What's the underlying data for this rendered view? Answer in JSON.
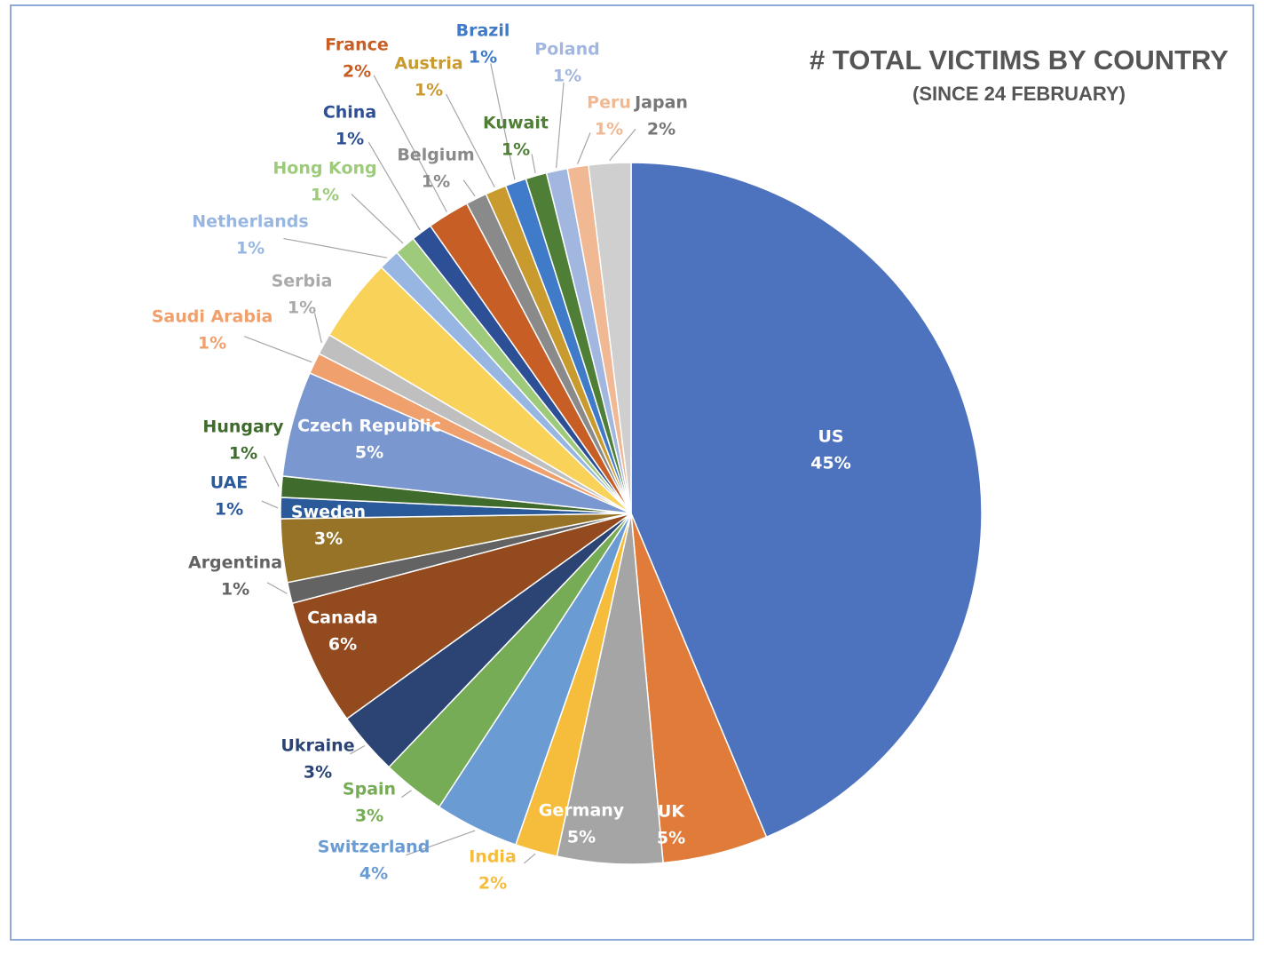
{
  "chart_data": {
    "type": "pie",
    "title": "# TOTAL VICTIMS BY COUNTRY",
    "subtitle": "(SINCE 24 FEBRUARY)",
    "categories": [
      "US",
      "UK",
      "Germany",
      "India",
      "Switzerland",
      "Spain",
      "Ukraine",
      "Canada",
      "Argentina",
      "Sweden",
      "UAE",
      "Hungary",
      "Czech Republic",
      "Saudi Arabia",
      "Serbia",
      null,
      "Netherlands",
      "Hong Kong",
      "China",
      "France",
      "Belgium",
      "Austria",
      "Brazil",
      "Kuwait",
      "Poland",
      "Peru",
      "Japan"
    ],
    "values": [
      45,
      5,
      5,
      2,
      4,
      3,
      3,
      6,
      1,
      3,
      1,
      1,
      5,
      1,
      1,
      4,
      1,
      1,
      1,
      2,
      1,
      1,
      1,
      1,
      1,
      1,
      2
    ],
    "value_labels": [
      "45%",
      "5%",
      "5%",
      "2%",
      "4%",
      "3%",
      "3%",
      "6%",
      "1%",
      "3%",
      "1%",
      "1%",
      "5%",
      "1%",
      "1%",
      null,
      "1%",
      "1%",
      "1%",
      "2%",
      "1%",
      "1%",
      "1%",
      "1%",
      "1%",
      "1%",
      "2%"
    ],
    "colors": [
      "#4e73be",
      "#e07b39",
      "#a5a5a5",
      "#f6bc3c",
      "#6a9bd2",
      "#76ac55",
      "#2c4474",
      "#934a1e",
      "#636363",
      "#977327",
      "#2b5a9b",
      "#3f6b2c",
      "#7a98cf",
      "#f0a06d",
      "#bfbfbf",
      "#f9d25a",
      "#97b6e1",
      "#9ecb7b",
      "#2d4f96",
      "#c65e26",
      "#8a8a8a",
      "#c99a2e",
      "#3f7bc8",
      "#4f7f36",
      "#a2b7df",
      "#f1b894",
      "#cfcfcf"
    ]
  }
}
